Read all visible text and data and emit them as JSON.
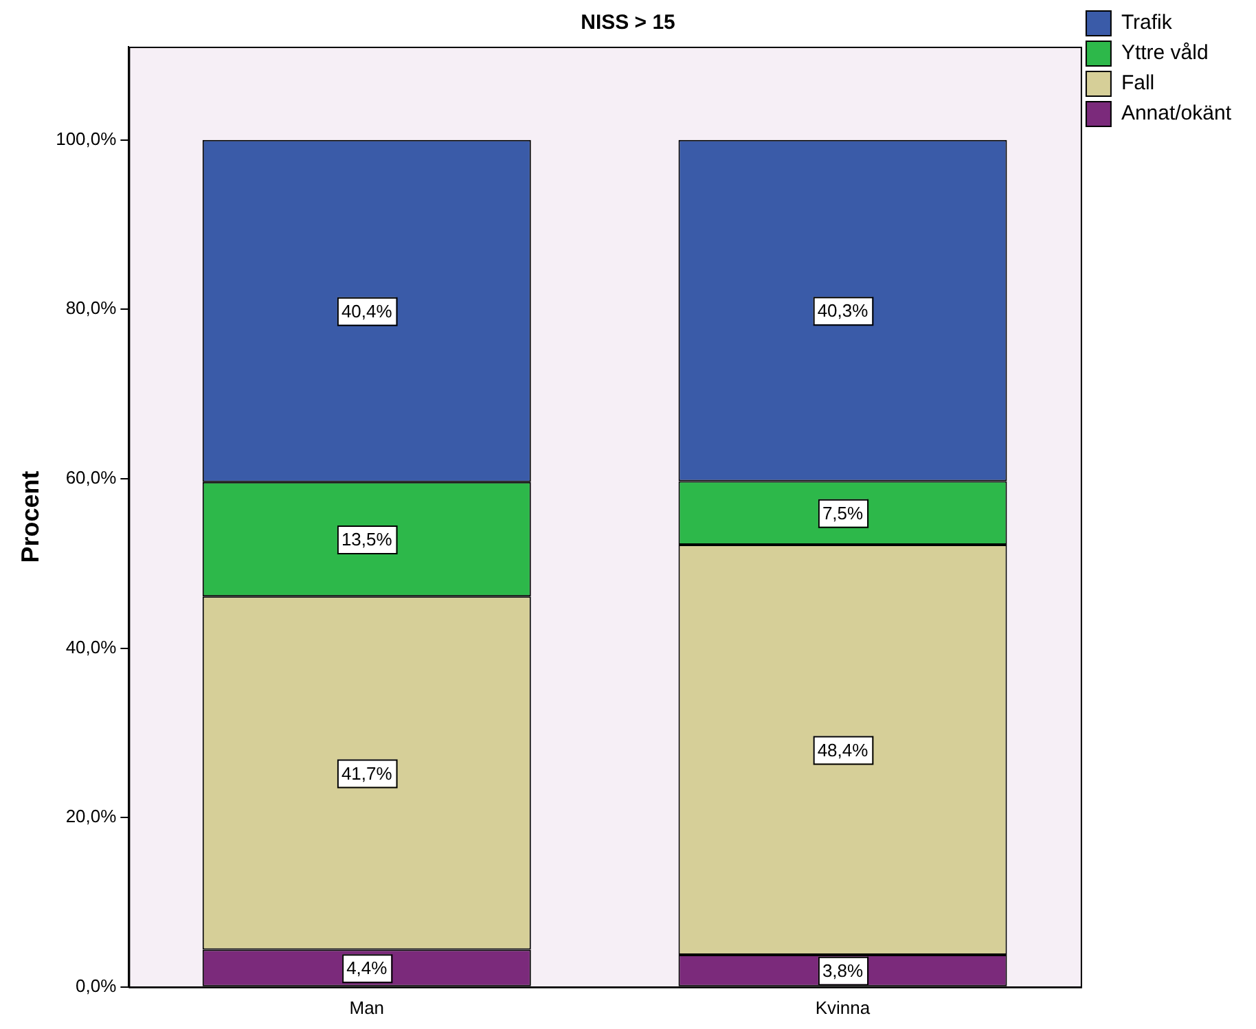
{
  "chart_data": {
    "type": "bar",
    "title": "NISS > 15",
    "ylabel": "Procent",
    "categories": [
      "Man",
      "Kvinna"
    ],
    "stacked": true,
    "series": [
      {
        "name": "Annat/okänt",
        "color": "#7b2a7b",
        "values": [
          4.4,
          3.8
        ],
        "value_labels": [
          "4,4%",
          "3,8%"
        ]
      },
      {
        "name": "Fall",
        "color": "#d6cf98",
        "values": [
          41.7,
          48.4
        ],
        "value_labels": [
          "41,7%",
          "48,4%"
        ]
      },
      {
        "name": "Yttre våld",
        "color": "#2db84a",
        "values": [
          13.5,
          7.5
        ],
        "value_labels": [
          "13,5%",
          "7,5%"
        ]
      },
      {
        "name": "Trafik",
        "color": "#3a5ba8",
        "values": [
          40.4,
          40.3
        ],
        "value_labels": [
          "40,4%",
          "40,3%"
        ]
      }
    ],
    "ylim": [
      0,
      111
    ],
    "yticks": [
      {
        "value": 0,
        "label": "0,0%"
      },
      {
        "value": 20,
        "label": "20,0%"
      },
      {
        "value": 40,
        "label": "40,0%"
      },
      {
        "value": 60,
        "label": "60,0%"
      },
      {
        "value": 80,
        "label": "80,0%"
      },
      {
        "value": 100,
        "label": "100,0%"
      }
    ],
    "grid": false,
    "legend": "top right"
  }
}
